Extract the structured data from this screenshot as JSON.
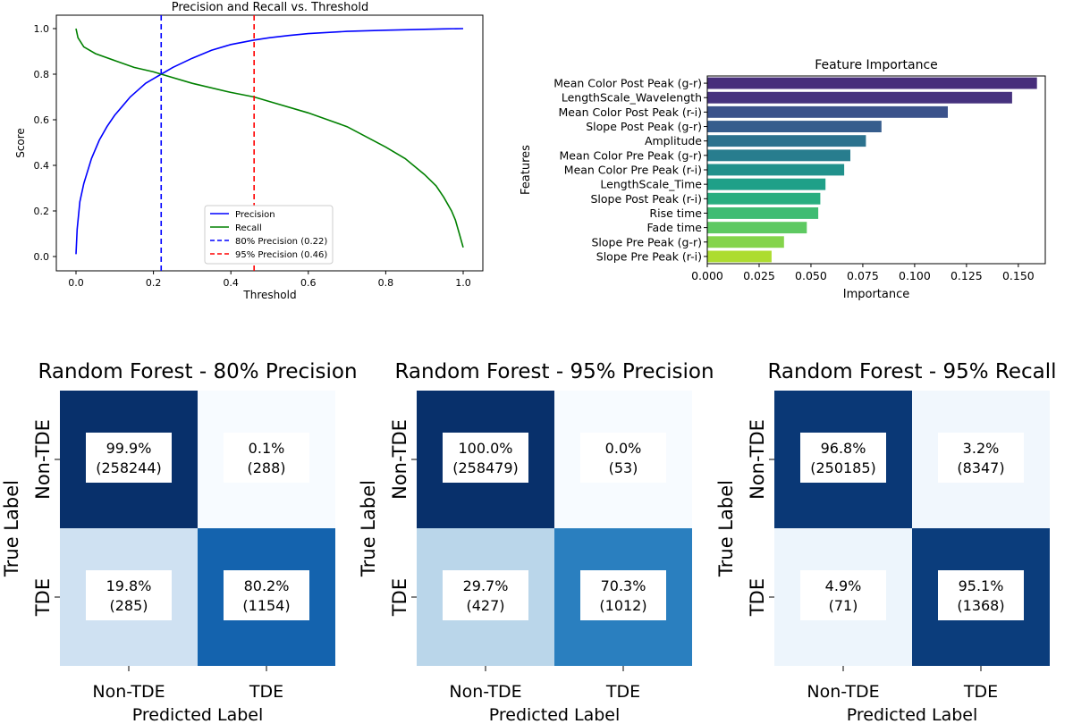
{
  "chart_data": [
    {
      "type": "line",
      "title": "Precision and Recall vs. Threshold",
      "xlabel": "Threshold",
      "ylabel": "Score",
      "xlim": [
        0,
        1
      ],
      "ylim": [
        0,
        1
      ],
      "xticks": [
        "0.0",
        "0.2",
        "0.4",
        "0.6",
        "0.8",
        "1.0"
      ],
      "yticks": [
        "0.0",
        "0.2",
        "0.4",
        "0.6",
        "0.8",
        "1.0"
      ],
      "grid": false,
      "legend_position": "lower-right",
      "series": [
        {
          "name": "Precision",
          "color": "#0000ff",
          "style": "solid",
          "x": [
            0.0,
            0.003,
            0.01,
            0.02,
            0.04,
            0.06,
            0.08,
            0.1,
            0.12,
            0.14,
            0.16,
            0.18,
            0.2,
            0.22,
            0.25,
            0.3,
            0.35,
            0.4,
            0.46,
            0.5,
            0.55,
            0.6,
            0.7,
            0.8,
            0.9,
            0.95,
            1.0
          ],
          "y": [
            0.01,
            0.12,
            0.24,
            0.32,
            0.43,
            0.51,
            0.57,
            0.62,
            0.66,
            0.7,
            0.73,
            0.76,
            0.78,
            0.8,
            0.83,
            0.87,
            0.905,
            0.93,
            0.95,
            0.96,
            0.97,
            0.978,
            0.988,
            0.993,
            0.997,
            0.999,
            1.0
          ]
        },
        {
          "name": "Recall",
          "color": "#008000",
          "style": "solid",
          "x": [
            0.0,
            0.005,
            0.02,
            0.05,
            0.1,
            0.15,
            0.2,
            0.22,
            0.3,
            0.4,
            0.46,
            0.5,
            0.6,
            0.7,
            0.8,
            0.85,
            0.9,
            0.93,
            0.95,
            0.97,
            0.98,
            0.99,
            1.0
          ],
          "y": [
            1.0,
            0.96,
            0.92,
            0.89,
            0.86,
            0.83,
            0.81,
            0.8,
            0.76,
            0.72,
            0.7,
            0.68,
            0.63,
            0.57,
            0.48,
            0.43,
            0.36,
            0.31,
            0.26,
            0.2,
            0.16,
            0.1,
            0.04
          ]
        },
        {
          "name": "80% Precision (0.22)",
          "color": "#0000ff",
          "style": "dashed",
          "vline": 0.22
        },
        {
          "name": "95% Precision (0.46)",
          "color": "#ff0000",
          "style": "dashed",
          "vline": 0.46
        }
      ]
    },
    {
      "type": "bar",
      "orientation": "horizontal",
      "title": "Feature Importance",
      "xlabel": "Importance",
      "ylabel": "Features",
      "xlim": [
        0,
        0.163
      ],
      "xticks": [
        "0.000",
        "0.025",
        "0.050",
        "0.075",
        "0.100",
        "0.125",
        "0.150"
      ],
      "categories": [
        "Mean Color Post Peak (g-r)",
        "LengthScale_Wavelength",
        "Mean Color Post Peak (r-i)",
        "Slope Post Peak (g-r)",
        "Amplitude",
        "Mean Color Pre Peak (g-r)",
        "Mean Color Pre Peak (r-i)",
        "LengthScale_Time",
        "Slope Post Peak (r-i)",
        "Rise time",
        "Fade time",
        "Slope Pre Peak (g-r)",
        "Slope Pre Peak (r-i)"
      ],
      "values": [
        0.159,
        0.147,
        0.116,
        0.084,
        0.0765,
        0.069,
        0.066,
        0.057,
        0.0545,
        0.0535,
        0.048,
        0.037,
        0.031
      ],
      "colors": [
        "#472d7b",
        "#46327e",
        "#3b528b",
        "#365d8d",
        "#2c728e",
        "#287d8e",
        "#21918c",
        "#1fa088",
        "#28ae80",
        "#3fbc73",
        "#5ec962",
        "#84d44b",
        "#addc30"
      ]
    },
    {
      "type": "heatmap",
      "title": "Random Forest - 80% Precision",
      "xlabel": "Predicted Label",
      "ylabel": "True Label",
      "row_labels": [
        "Non-TDE",
        "TDE"
      ],
      "col_labels": [
        "Non-TDE",
        "TDE"
      ],
      "cells": [
        [
          {
            "pct": "99.9%",
            "count": "(258244)",
            "fraction": 0.999
          },
          {
            "pct": "0.1%",
            "count": "(288)",
            "fraction": 0.001
          }
        ],
        [
          {
            "pct": "19.8%",
            "count": "(285)",
            "fraction": 0.198
          },
          {
            "pct": "80.2%",
            "count": "(1154)",
            "fraction": 0.802
          }
        ]
      ]
    },
    {
      "type": "heatmap",
      "title": "Random Forest - 95% Precision",
      "xlabel": "Predicted Label",
      "ylabel": "True Label",
      "row_labels": [
        "Non-TDE",
        "TDE"
      ],
      "col_labels": [
        "Non-TDE",
        "TDE"
      ],
      "cells": [
        [
          {
            "pct": "100.0%",
            "count": "(258479)",
            "fraction": 1.0
          },
          {
            "pct": "0.0%",
            "count": "(53)",
            "fraction": 0.0
          }
        ],
        [
          {
            "pct": "29.7%",
            "count": "(427)",
            "fraction": 0.297
          },
          {
            "pct": "70.3%",
            "count": "(1012)",
            "fraction": 0.703
          }
        ]
      ]
    },
    {
      "type": "heatmap",
      "title": "Random Forest - 95% Recall",
      "xlabel": "Predicted Label",
      "ylabel": "True Label",
      "row_labels": [
        "Non-TDE",
        "TDE"
      ],
      "col_labels": [
        "Non-TDE",
        "TDE"
      ],
      "cells": [
        [
          {
            "pct": "96.8%",
            "count": "(250185)",
            "fraction": 0.968
          },
          {
            "pct": "3.2%",
            "count": "(8347)",
            "fraction": 0.032
          }
        ],
        [
          {
            "pct": "4.9%",
            "count": "(71)",
            "fraction": 0.049
          },
          {
            "pct": "95.1%",
            "count": "(1368)",
            "fraction": 0.951
          }
        ]
      ]
    }
  ]
}
